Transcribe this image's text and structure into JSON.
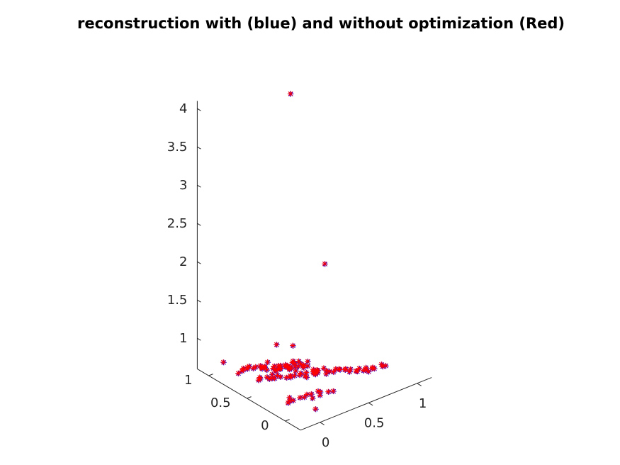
{
  "chart_data": {
    "type": "scatter",
    "title": "reconstruction with (blue) and without optimization (Red)",
    "colors": {
      "blue": "#0000ff",
      "red": "#ff0000"
    },
    "marker": "*",
    "axes": {
      "x": {
        "ticks": [
          "0",
          "0.5",
          "1"
        ],
        "range": [
          -0.2,
          1.15
        ]
      },
      "y": {
        "ticks": [
          "0",
          "0.5",
          "1"
        ],
        "range": [
          -0.2,
          1.15
        ]
      },
      "z": {
        "ticks": [
          "1",
          "1.5",
          "2",
          "2.5",
          "3",
          "3.5",
          "4"
        ],
        "range": [
          0.6,
          4.1
        ]
      }
    },
    "outliers": [
      {
        "x": 0.05,
        "y": 0.25,
        "z": 4.6
      },
      {
        "x": 0.6,
        "y": 0.5,
        "z": 1.95
      }
    ],
    "cluster": {
      "segments": [
        {
          "from": [
            0.0,
            0.6,
            0.7
          ],
          "to": [
            0.9,
            0.1,
            0.7
          ],
          "n": 50
        },
        {
          "from": [
            -0.05,
            0.8,
            0.72
          ],
          "to": [
            0.35,
            0.55,
            0.7
          ],
          "n": 28
        },
        {
          "from": [
            0.0,
            0.25,
            0.62
          ],
          "to": [
            0.35,
            0.1,
            0.65
          ],
          "n": 14
        },
        {
          "from": [
            0.25,
            0.5,
            0.85
          ],
          "to": [
            0.4,
            0.35,
            0.75
          ],
          "n": 10
        },
        {
          "from": [
            0.2,
            0.7,
            0.72
          ],
          "to": [
            0.45,
            0.55,
            0.68
          ],
          "n": 12
        }
      ],
      "extras": [
        {
          "x": -0.05,
          "y": 1.0,
          "z": 0.7
        },
        {
          "x": 0.3,
          "y": 0.75,
          "z": 0.9
        },
        {
          "x": 0.15,
          "y": 0.05,
          "z": 0.55
        },
        {
          "x": 0.35,
          "y": 0.6,
          "z": 0.95
        }
      ]
    }
  }
}
